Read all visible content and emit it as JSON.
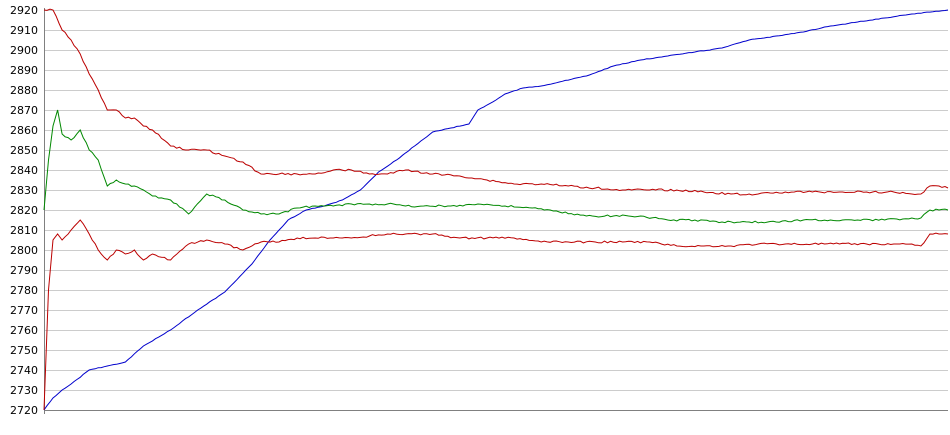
{
  "chart_data": {
    "type": "line",
    "title": "",
    "xlabel": "",
    "ylabel": "",
    "ylim": [
      2720,
      2920
    ],
    "yticks": [
      2720,
      2730,
      2740,
      2750,
      2760,
      2770,
      2780,
      2790,
      2800,
      2810,
      2820,
      2830,
      2840,
      2850,
      2860,
      2870,
      2880,
      2890,
      2900,
      2910,
      2920
    ],
    "xlim": [
      0,
      100
    ],
    "grid": true,
    "legend": "none",
    "series": [
      {
        "color": "#0000cc",
        "x": [
          0,
          1,
          2,
          3,
          5,
          7,
          9,
          11,
          14,
          17,
          20,
          23,
          25,
          27,
          29,
          31,
          33,
          35,
          37,
          39,
          41,
          43,
          45,
          47,
          48,
          50,
          51,
          53,
          55,
          57,
          60,
          63,
          66,
          69,
          72,
          75,
          78,
          81,
          84,
          87,
          90,
          93,
          96,
          100
        ],
        "values": [
          2720,
          2726,
          2730,
          2733,
          2740,
          2742,
          2744,
          2752,
          2760,
          2770,
          2779,
          2793,
          2805,
          2815,
          2820,
          2822,
          2825,
          2830,
          2839,
          2845,
          2852,
          2859,
          2861,
          2863,
          2870,
          2875,
          2878,
          2881,
          2882,
          2884,
          2887,
          2892,
          2895,
          2897,
          2899,
          2901,
          2905,
          2907,
          2909,
          2912,
          2914,
          2916,
          2918,
          2920
        ]
      },
      {
        "color": "#008800",
        "x": [
          0,
          0.5,
          1,
          1.5,
          2,
          3,
          4,
          5,
          6,
          7,
          8,
          9,
          10,
          11,
          12,
          14,
          16,
          18,
          20,
          22,
          24,
          26,
          28,
          30,
          32,
          34,
          36,
          38,
          40,
          42,
          45,
          48,
          51,
          54,
          57,
          60,
          63,
          66,
          69,
          72,
          75,
          78,
          81,
          84,
          87,
          90,
          93,
          96,
          97,
          98,
          99,
          100
        ],
        "values": [
          2820,
          2845,
          2862,
          2870,
          2858,
          2855,
          2860,
          2850,
          2845,
          2832,
          2835,
          2833,
          2832,
          2830,
          2827,
          2825,
          2818,
          2828,
          2825,
          2820,
          2818,
          2818,
          2821,
          2822,
          2822,
          2823,
          2823,
          2823,
          2822,
          2822,
          2822,
          2823,
          2822,
          2821,
          2819,
          2817,
          2817,
          2817,
          2815,
          2815,
          2814,
          2814,
          2814,
          2815,
          2815,
          2815,
          2815,
          2816,
          2816,
          2820,
          2820,
          2820
        ]
      },
      {
        "color": "#bb0000",
        "x": [
          0,
          1,
          2,
          3,
          4,
          5,
          6,
          7,
          8,
          9,
          10,
          11,
          12,
          14,
          16,
          18,
          20,
          22,
          24,
          26,
          28,
          30,
          32,
          34,
          36,
          38,
          40,
          43,
          46,
          49,
          52,
          55,
          58,
          61,
          64,
          67,
          70,
          73,
          76,
          79,
          82,
          85,
          88,
          91,
          94,
          96,
          97,
          98,
          99,
          100
        ],
        "values": [
          2920,
          2920,
          2910,
          2905,
          2898,
          2888,
          2880,
          2870,
          2870,
          2866,
          2866,
          2862,
          2860,
          2852,
          2850,
          2850,
          2847,
          2844,
          2838,
          2838,
          2838,
          2838,
          2840,
          2840,
          2838,
          2838,
          2840,
          2838,
          2837,
          2835,
          2833,
          2833,
          2832,
          2831,
          2830,
          2830,
          2830,
          2829,
          2828,
          2828,
          2829,
          2829,
          2829,
          2829,
          2829,
          2828,
          2828,
          2832,
          2832,
          2831
        ]
      },
      {
        "color": "#bb0000",
        "x": [
          0,
          0.5,
          1,
          1.5,
          2,
          3,
          4,
          5,
          6,
          7,
          8,
          9,
          10,
          11,
          12,
          14,
          16,
          18,
          20,
          22,
          24,
          26,
          28,
          30,
          32,
          34,
          36,
          38,
          40,
          43,
          46,
          49,
          52,
          55,
          58,
          61,
          64,
          67,
          70,
          73,
          76,
          79,
          82,
          85,
          88,
          91,
          94,
          96,
          97,
          98,
          99,
          100
        ],
        "values": [
          2720,
          2780,
          2805,
          2808,
          2805,
          2810,
          2815,
          2808,
          2800,
          2795,
          2800,
          2798,
          2800,
          2795,
          2798,
          2795,
          2803,
          2805,
          2803,
          2800,
          2804,
          2804,
          2806,
          2806,
          2806,
          2806,
          2807,
          2808,
          2808,
          2808,
          2806,
          2806,
          2806,
          2804,
          2804,
          2804,
          2804,
          2804,
          2802,
          2802,
          2802,
          2803,
          2803,
          2803,
          2803,
          2803,
          2803,
          2803,
          2802,
          2808,
          2808,
          2808
        ]
      }
    ]
  }
}
